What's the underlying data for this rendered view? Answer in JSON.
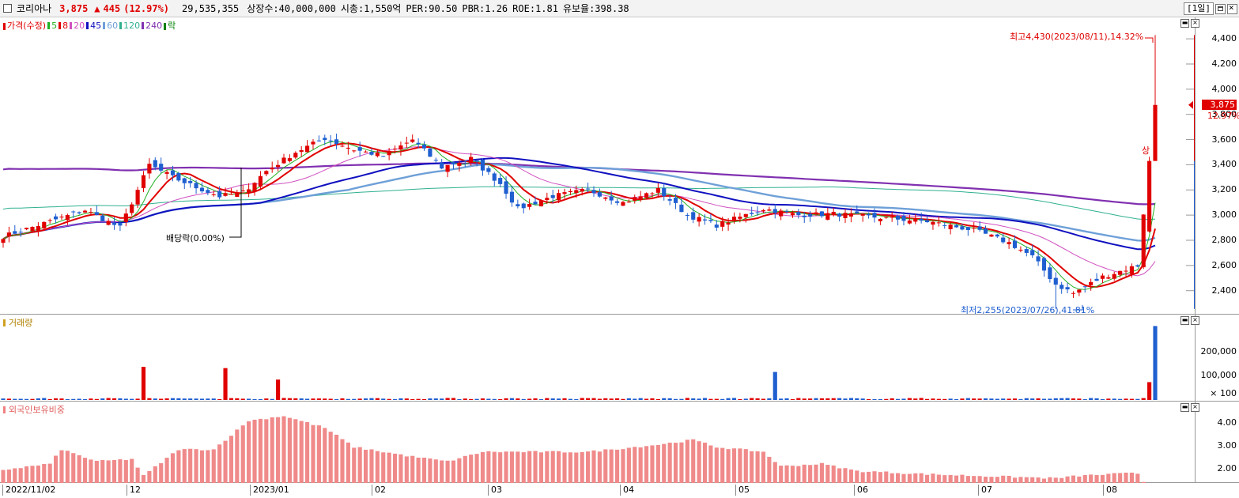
{
  "header": {
    "checkbox_state": "unchecked",
    "name": "코리아나",
    "price": "3,875",
    "change_arrow": "▲",
    "change": "445",
    "change_pct": "(12.97%)",
    "volume": "29,535,355",
    "listed_shares": "상장수:40,000,000",
    "market_cap": "시총:1,550억",
    "per": "PER:90.50",
    "pbr": "PBR:1.26",
    "roe": "ROE:1.81",
    "retention": "유보율:398.38",
    "period": "[1일]",
    "up_color": "#e00000",
    "down_color": "#1f5fd0"
  },
  "price_panel": {
    "legend": {
      "price": "가격(수정)",
      "ma5": "5",
      "ma8": "8",
      "ma20": "20",
      "ma45": "45",
      "ma60": "60",
      "ma120": "120",
      "ma240": "240",
      "rak": "락"
    },
    "legend_colors": {
      "price": "#e00000",
      "ma5": "#22b022",
      "ma8": "#e00000",
      "ma20": "#d050c0",
      "ma45": "#1010c0",
      "ma60": "#6ea0d8",
      "ma120": "#30b090",
      "ma240": "#8030b0",
      "rak": "#008000"
    },
    "y_ticks": [
      "4,400",
      "4,200",
      "4,000",
      "3,800",
      "3,600",
      "3,400",
      "3,200",
      "3,000",
      "2,800",
      "2,600",
      "2,400"
    ],
    "high_annotation": "최고4,430(2023/08/11),14.32%",
    "low_annotation": "최저2,255(2023/07/26),41.81%",
    "dividend_annotation": "배당락(0.00%)",
    "limit_up_label": "상",
    "current_price_label": "3,875",
    "current_pct_label": "12.97%"
  },
  "volume_panel": {
    "legend": "거래량",
    "y_ticks": [
      "200,000",
      "100,000",
      "× 100"
    ]
  },
  "foreign_panel": {
    "legend": "외국인보유비중",
    "y_ticks": [
      "4.00",
      "3.00",
      "2.00"
    ]
  },
  "x_axis": {
    "labels": [
      "2022/11/02",
      "12",
      "2023/01",
      "02",
      "03",
      "04",
      "05",
      "06",
      "07",
      "08"
    ]
  },
  "chart_data": {
    "type": "candlestick",
    "x_labels": [
      "2022/11/02",
      "12",
      "2023/01",
      "02",
      "03",
      "04",
      "05",
      "06",
      "07",
      "08"
    ],
    "price_axis": {
      "ylim": [
        2260,
        4520
      ],
      "ticks": [
        2400,
        2600,
        2800,
        3000,
        3200,
        3400,
        3600,
        3800,
        4000,
        4200,
        4400
      ]
    },
    "price_path": [
      [
        0,
        2830
      ],
      [
        8,
        2950
      ],
      [
        14,
        3040
      ],
      [
        20,
        2900
      ],
      [
        25,
        3400
      ],
      [
        29,
        3300
      ],
      [
        33,
        3220
      ],
      [
        37,
        3150
      ],
      [
        41,
        3180
      ],
      [
        45,
        3350
      ],
      [
        50,
        3500
      ],
      [
        55,
        3610
      ],
      [
        60,
        3520
      ],
      [
        65,
        3470
      ],
      [
        70,
        3600
      ],
      [
        75,
        3380
      ],
      [
        80,
        3450
      ],
      [
        85,
        3250
      ],
      [
        88,
        3050
      ],
      [
        94,
        3150
      ],
      [
        100,
        3200
      ],
      [
        106,
        3100
      ],
      [
        112,
        3200
      ],
      [
        117,
        3000
      ],
      [
        122,
        2920
      ],
      [
        130,
        3050
      ],
      [
        136,
        3000
      ],
      [
        142,
        3010
      ],
      [
        150,
        2980
      ],
      [
        158,
        2950
      ],
      [
        166,
        2880
      ],
      [
        172,
        2780
      ],
      [
        176,
        2670
      ],
      [
        180,
        2450
      ],
      [
        183,
        2380
      ],
      [
        188,
        2510
      ],
      [
        194,
        2600
      ],
      [
        196,
        3430
      ],
      [
        197,
        3875
      ]
    ],
    "total_days": 198,
    "annotations": {
      "high": {
        "price": 4430,
        "date": "2023/08/11",
        "pct": "14.32%"
      },
      "low": {
        "price": 2255,
        "date": "2023/07/26",
        "pct": "41.81%"
      }
    },
    "volume": {
      "ylim": [
        0,
        310000
      ],
      "ticks": [
        100000,
        200000
      ],
      "spikes": [
        [
          24,
          130000
        ],
        [
          38,
          125000
        ],
        [
          47,
          80000
        ],
        [
          132,
          110000
        ],
        [
          196,
          70000
        ],
        [
          197,
          290000
        ]
      ],
      "baseline": 3000
    },
    "foreign_ratio": {
      "ylim": [
        1.5,
        4.7
      ],
      "ticks": [
        2.0,
        3.0,
        4.0
      ],
      "path": [
        [
          0,
          2.05
        ],
        [
          8,
          2.3
        ],
        [
          10,
          2.9
        ],
        [
          16,
          2.4
        ],
        [
          22,
          2.5
        ],
        [
          24,
          1.8
        ],
        [
          30,
          2.9
        ],
        [
          36,
          2.9
        ],
        [
          42,
          4.1
        ],
        [
          48,
          4.3
        ],
        [
          55,
          3.8
        ],
        [
          60,
          3.0
        ],
        [
          70,
          2.6
        ],
        [
          76,
          2.4
        ],
        [
          82,
          2.8
        ],
        [
          92,
          2.8
        ],
        [
          100,
          2.8
        ],
        [
          112,
          3.1
        ],
        [
          118,
          3.3
        ],
        [
          122,
          3.0
        ],
        [
          130,
          2.8
        ],
        [
          133,
          2.2
        ],
        [
          140,
          2.3
        ],
        [
          146,
          2.0
        ],
        [
          160,
          1.85
        ],
        [
          180,
          1.7
        ],
        [
          184,
          1.8
        ],
        [
          192,
          1.9
        ],
        [
          194,
          1.9
        ],
        [
          195,
          1.55
        ],
        [
          197,
          1.5
        ]
      ]
    }
  }
}
